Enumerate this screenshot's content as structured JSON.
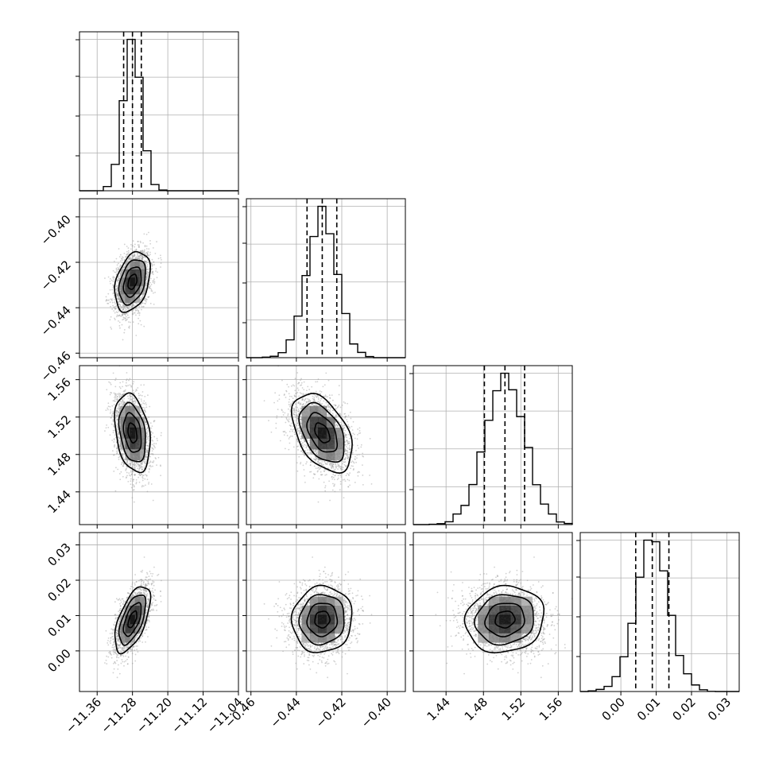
{
  "chart_data": {
    "type": "scatter",
    "subtype": "corner-plot",
    "title": "",
    "parameters": [
      {
        "key": "p0",
        "xlim": [
          -11.4,
          -11.04
        ],
        "ticks": [
          -11.36,
          -11.28,
          -11.2,
          -11.12,
          -11.04
        ],
        "tick_labels": [
          "−11.36",
          "−11.28",
          "−11.20",
          "−11.12",
          "−11.04"
        ],
        "quantiles": [
          -11.3,
          -11.28,
          -11.26
        ],
        "median": -11.28,
        "std": 0.02
      },
      {
        "key": "p1",
        "xlim": [
          -0.462,
          -0.392
        ],
        "ticks": [
          -0.46,
          -0.44,
          -0.42,
          -0.4
        ],
        "tick_labels": [
          "−0.46",
          "−0.44",
          "−0.42",
          "−0.40"
        ],
        "quantiles": [
          -0.4353,
          -0.4286,
          -0.4222
        ],
        "median": -0.4286,
        "std": 0.0066
      },
      {
        "key": "p2",
        "xlim": [
          1.405,
          1.575
        ],
        "ticks": [
          1.44,
          1.48,
          1.52,
          1.56
        ],
        "tick_labels": [
          "1.44",
          "1.48",
          "1.52",
          "1.56"
        ],
        "quantiles": [
          1.481,
          1.503,
          1.524
        ],
        "median": 1.503,
        "std": 0.021
      },
      {
        "key": "p3",
        "xlim": [
          -0.0115,
          0.0335
        ],
        "ticks": [
          0.0,
          0.01,
          0.02,
          0.03
        ],
        "tick_labels": [
          "0.00",
          "0.01",
          "0.02",
          "0.03"
        ],
        "quantiles": [
          0.0042,
          0.0089,
          0.0136
        ],
        "median": 0.0089,
        "std": 0.0047
      }
    ],
    "correlations": {
      "1-0": 0.35,
      "2-0": -0.3,
      "2-1": -0.45,
      "3-0": 0.6,
      "3-1": 0.05,
      "3-2": 0.1
    },
    "histogram_bins": 20,
    "contour_levels_sigma": [
      0.5,
      1.0,
      1.5,
      2.0
    ],
    "quantile_line_style": "dashed",
    "grid": true,
    "legend": "none",
    "colors": {
      "points": "#9a9a9a",
      "density": "#000000",
      "lines": "#000000"
    }
  }
}
